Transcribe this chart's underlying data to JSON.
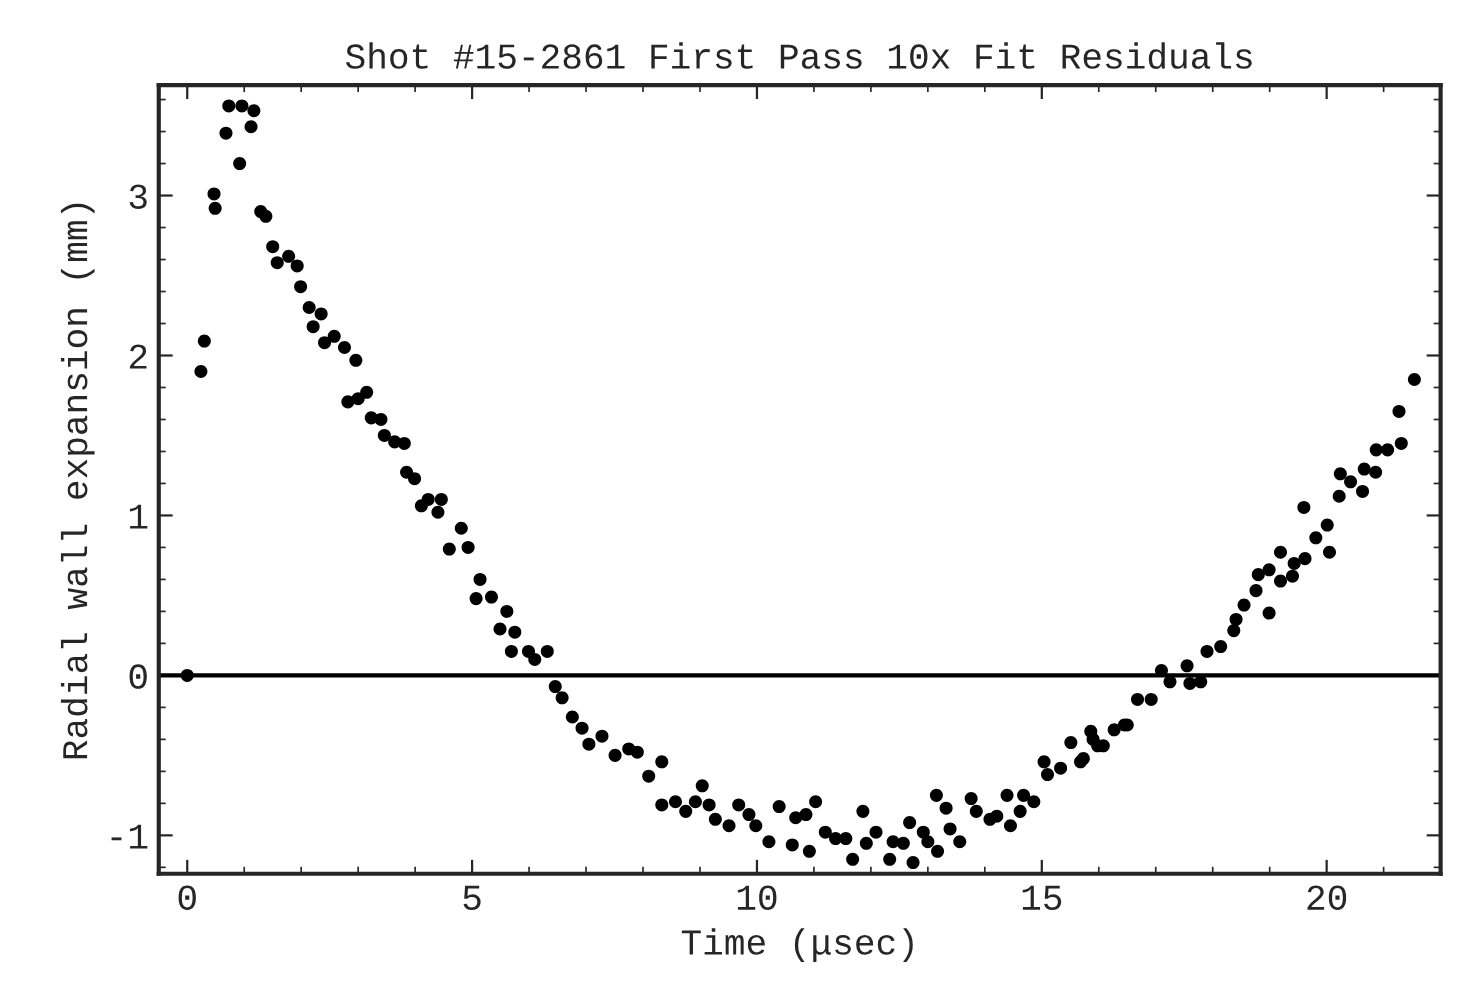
{
  "chart_data": {
    "type": "scatter",
    "title": "Shot #15-2861 First Pass 10x Fit Residuals",
    "xlabel": "Time (μsec)",
    "ylabel": "Radial wall expansion (mm)",
    "xlim": [
      -0.5,
      22.0
    ],
    "ylim": [
      -1.24,
      3.69
    ],
    "xticks": [
      0,
      5,
      10,
      15,
      20
    ],
    "yticks": [
      -1,
      0,
      1,
      2,
      3
    ],
    "grid": false,
    "marker": "circle",
    "ref_lines": [
      {
        "axis": "y",
        "value": 0,
        "color": "#000000"
      }
    ],
    "series": [
      {
        "color": "#000000",
        "x": [
          0.0,
          0.24,
          0.3,
          0.47,
          0.49,
          0.68,
          0.73,
          0.96,
          0.92,
          1.12,
          1.17,
          1.29,
          1.38,
          1.5,
          1.58,
          1.78,
          1.93,
          1.99,
          2.14,
          2.21,
          2.35,
          2.41,
          2.58,
          2.76,
          2.96,
          2.82,
          3.0,
          3.15,
          3.23,
          3.4,
          3.46,
          3.64,
          3.81,
          3.85,
          3.99,
          4.11,
          4.23,
          4.4,
          4.46,
          4.6,
          4.81,
          4.93,
          5.14,
          5.07,
          5.34,
          5.49,
          5.61,
          5.75,
          5.69,
          5.99,
          6.1,
          6.32,
          6.46,
          6.58,
          6.76,
          6.93,
          7.05,
          7.28,
          7.51,
          7.75,
          7.9,
          8.1,
          8.33,
          8.33,
          8.57,
          8.75,
          8.92,
          9.04,
          9.16,
          9.27,
          9.51,
          9.68,
          9.86,
          9.98,
          10.21,
          10.39,
          10.62,
          10.68,
          10.86,
          10.92,
          11.03,
          11.2,
          11.38,
          11.56,
          11.68,
          11.86,
          11.92,
          12.09,
          12.33,
          12.39,
          12.57,
          12.68,
          12.74,
          12.92,
          13.0,
          13.15,
          13.17,
          13.32,
          13.39,
          13.56,
          13.76,
          13.85,
          14.09,
          14.21,
          14.39,
          14.45,
          14.62,
          14.68,
          14.86,
          15.04,
          15.1,
          15.33,
          15.51,
          15.68,
          15.73,
          15.86,
          15.9,
          15.98,
          16.08,
          16.27,
          16.45,
          16.5,
          16.68,
          16.92,
          17.1,
          17.25,
          17.55,
          17.6,
          17.79,
          17.9,
          18.14,
          18.37,
          18.41,
          18.55,
          18.76,
          18.8,
          18.99,
          18.99,
          19.19,
          19.19,
          19.4,
          19.43,
          19.6,
          19.62,
          19.81,
          20.01,
          20.05,
          20.22,
          20.24,
          20.42,
          20.63,
          20.66,
          20.86,
          20.87,
          21.07,
          21.31,
          21.27,
          21.54
        ],
        "values": [
          0.0,
          1.9,
          2.09,
          3.01,
          2.92,
          3.39,
          3.56,
          3.56,
          3.2,
          3.43,
          3.53,
          2.9,
          2.87,
          2.68,
          2.58,
          2.62,
          2.56,
          2.43,
          2.3,
          2.18,
          2.26,
          2.08,
          2.12,
          2.05,
          1.97,
          1.71,
          1.73,
          1.77,
          1.61,
          1.6,
          1.5,
          1.46,
          1.45,
          1.27,
          1.23,
          1.06,
          1.1,
          1.02,
          1.1,
          0.79,
          0.92,
          0.8,
          0.6,
          0.48,
          0.49,
          0.29,
          0.4,
          0.27,
          0.15,
          0.15,
          0.1,
          0.15,
          -0.07,
          -0.14,
          -0.26,
          -0.33,
          -0.43,
          -0.38,
          -0.5,
          -0.46,
          -0.48,
          -0.63,
          -0.54,
          -0.81,
          -0.79,
          -0.85,
          -0.79,
          -0.69,
          -0.81,
          -0.9,
          -0.94,
          -0.81,
          -0.87,
          -0.94,
          -1.04,
          -0.82,
          -1.06,
          -0.89,
          -0.87,
          -1.1,
          -0.79,
          -0.98,
          -1.02,
          -1.02,
          -1.15,
          -0.85,
          -1.05,
          -0.98,
          -1.15,
          -1.04,
          -1.05,
          -0.92,
          -1.17,
          -0.98,
          -1.04,
          -0.75,
          -1.1,
          -0.83,
          -0.96,
          -1.04,
          -0.77,
          -0.85,
          -0.9,
          -0.88,
          -0.75,
          -0.94,
          -0.85,
          -0.75,
          -0.79,
          -0.54,
          -0.62,
          -0.58,
          -0.42,
          -0.54,
          -0.52,
          -0.35,
          -0.4,
          -0.44,
          -0.44,
          -0.34,
          -0.31,
          -0.31,
          -0.15,
          -0.15,
          0.03,
          -0.04,
          0.06,
          -0.05,
          -0.04,
          0.15,
          0.18,
          0.28,
          0.35,
          0.44,
          0.53,
          0.63,
          0.39,
          0.66,
          0.59,
          0.77,
          0.62,
          0.7,
          1.05,
          0.73,
          0.86,
          0.94,
          0.77,
          1.12,
          1.26,
          1.21,
          1.15,
          1.29,
          1.27,
          1.41,
          1.41,
          1.45,
          1.65,
          1.85
        ]
      }
    ]
  }
}
